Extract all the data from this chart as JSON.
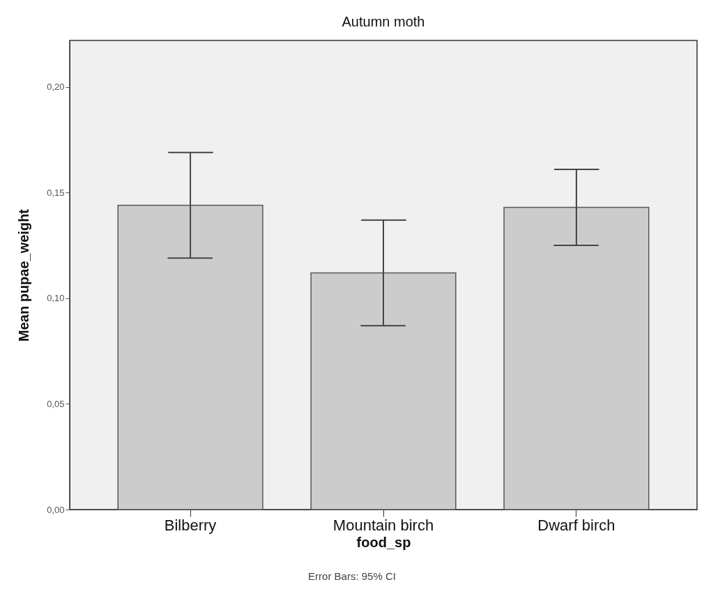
{
  "chart_data": {
    "type": "bar",
    "title": "Autumn moth",
    "xlabel": "food_sp",
    "ylabel": "Mean pupae_weight",
    "categories": [
      "Bilberry",
      "Mountain birch",
      "Dwarf birch"
    ],
    "values": [
      0.144,
      0.112,
      0.143
    ],
    "color": "#cccccc",
    "errors": [
      [
        0.119,
        0.169
      ],
      [
        0.087,
        0.137
      ],
      [
        0.125,
        0.161
      ]
    ],
    "ylim": [
      0,
      0.222
    ],
    "yticks": [
      {
        "value": 0,
        "label": "0,00"
      },
      {
        "value": 0.05,
        "label": "0,05"
      },
      {
        "value": 0.1,
        "label": "0,10"
      },
      {
        "value": 0.15,
        "label": "0,15"
      },
      {
        "value": 0.2,
        "label": "0,20"
      }
    ],
    "annotations": [
      "Error Bars: 95% CI"
    ]
  }
}
